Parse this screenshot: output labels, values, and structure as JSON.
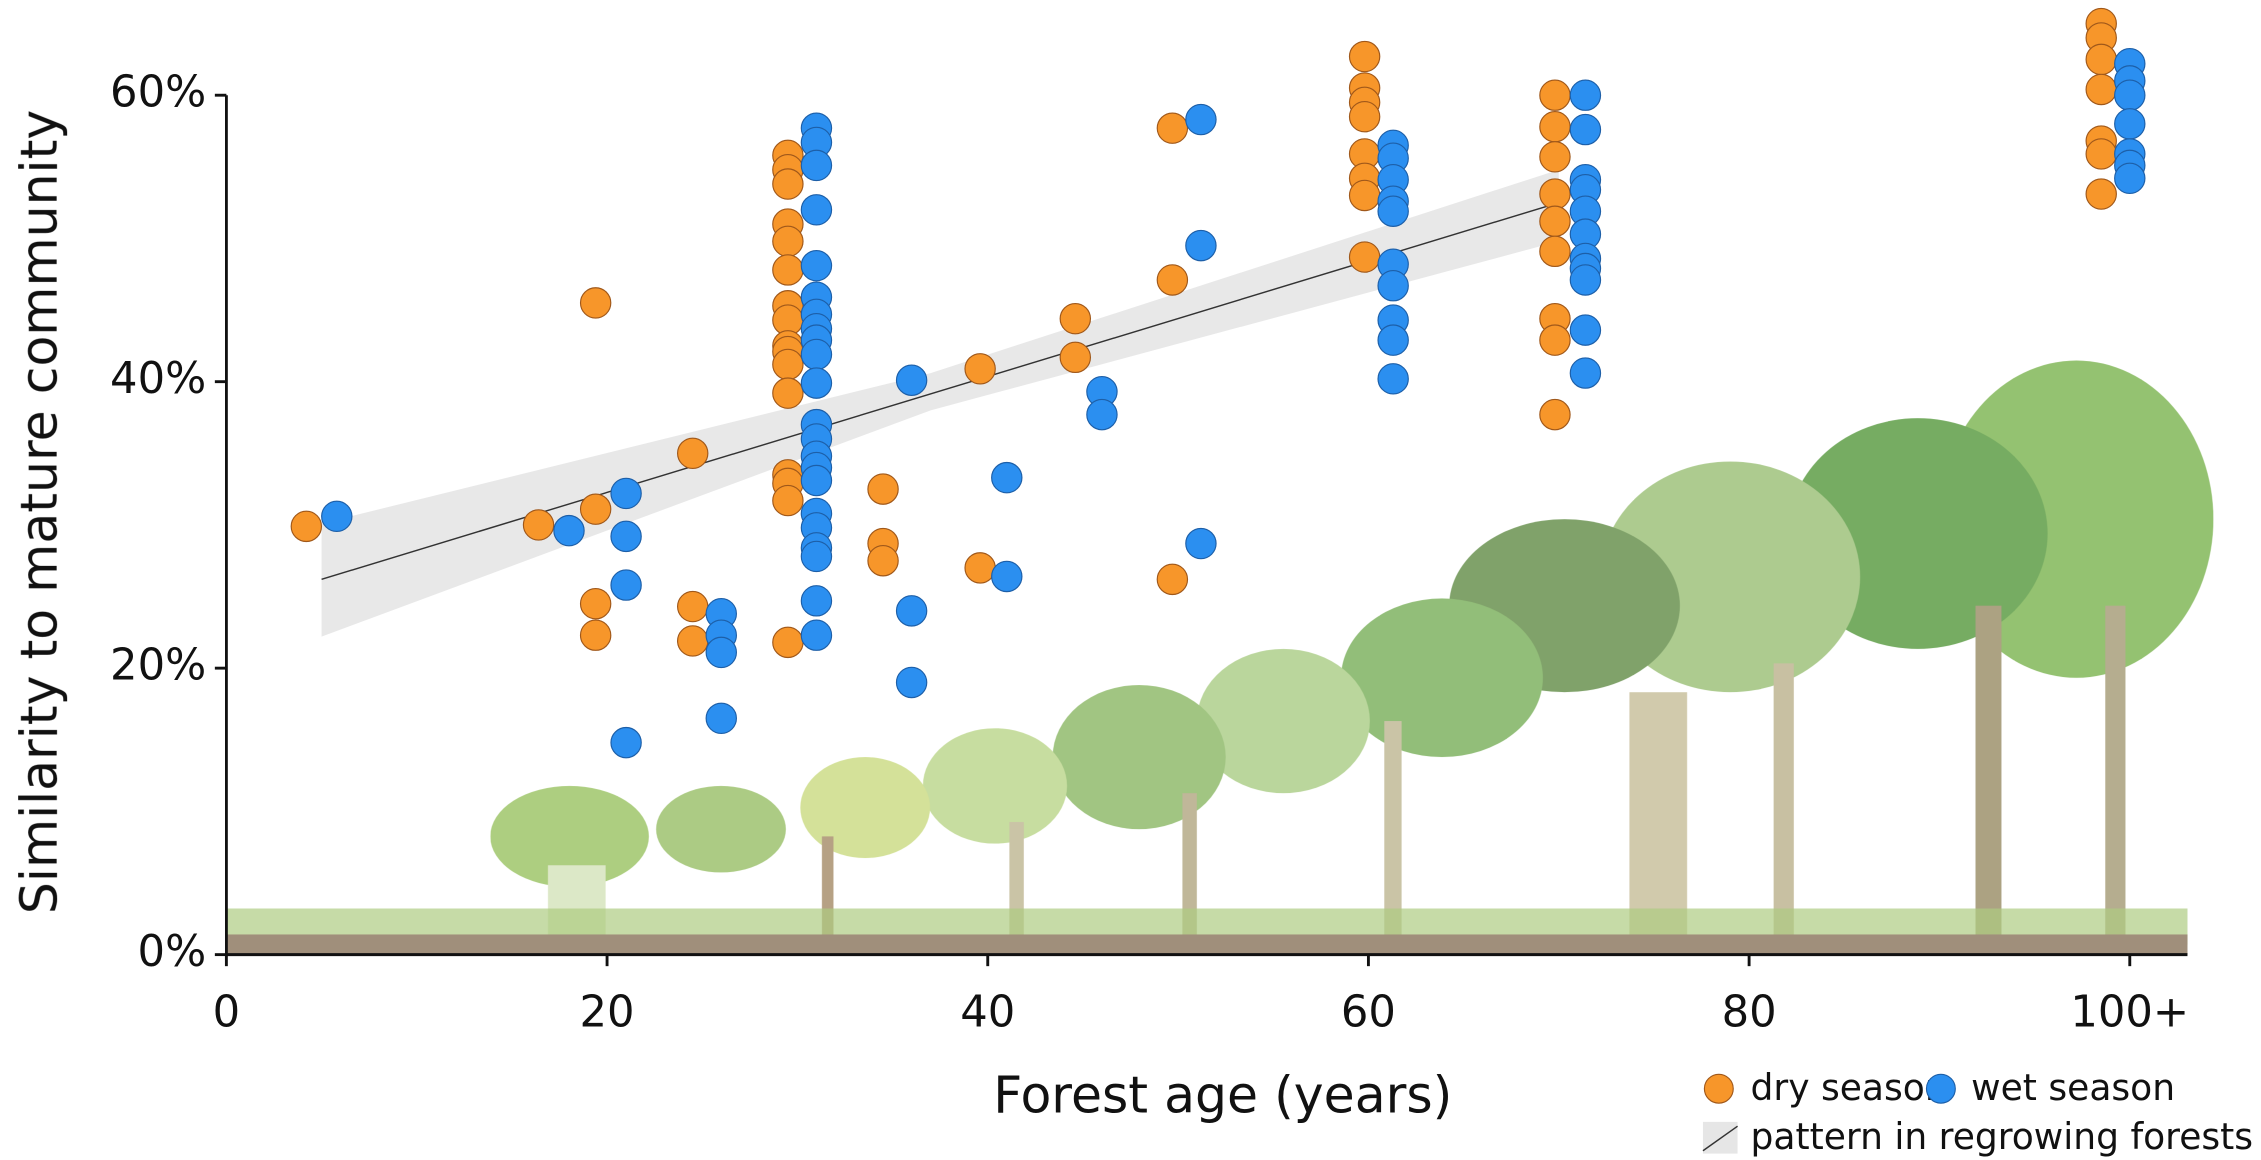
{
  "chart_data": {
    "type": "scatter",
    "x_label": "Forest age (years)",
    "y_label": "Similarity to mature community",
    "xlim": [
      0,
      103
    ],
    "ylim": [
      0,
      60
    ],
    "xticks": [
      0,
      20,
      40,
      60,
      80,
      {
        "value": 100,
        "label": "100+"
      }
    ],
    "yticks": [
      {
        "value": 0,
        "label": "0%"
      },
      {
        "value": 20,
        "label": "20%"
      },
      {
        "value": 40,
        "label": "40%"
      },
      {
        "value": 60,
        "label": "60%"
      }
    ],
    "series": [
      {
        "name": "dry season",
        "color": "#f7962a",
        "x": [
          4.2,
          16.4,
          19.4,
          19.4,
          19.4,
          19.4,
          24.5,
          24.5,
          24.5,
          29.5,
          29.5,
          29.5,
          29.5,
          29.5,
          29.5,
          29.5,
          29.5,
          29.5,
          29.5,
          29.5,
          29.5,
          29.5,
          29.5,
          29.5,
          29.5,
          34.5,
          34.5,
          34.5,
          39.6,
          39.6,
          44.6,
          44.6,
          49.7,
          49.7,
          49.7,
          59.8,
          59.8,
          59.8,
          59.8,
          59.8,
          59.8,
          59.8,
          59.8,
          69.8,
          69.8,
          69.8,
          69.8,
          69.8,
          69.8,
          69.8,
          69.8,
          69.8,
          98.5,
          98.5,
          98.5,
          98.5,
          98.5,
          98.5,
          98.5
        ],
        "values": [
          29.9,
          30,
          45.5,
          31.1,
          24.5,
          22.3,
          35,
          24.3,
          21.9,
          55.8,
          54.8,
          53.8,
          51,
          49.8,
          47.8,
          45.3,
          44.3,
          42.5,
          42.1,
          41.2,
          39.2,
          33.5,
          32.9,
          31.7,
          21.8,
          32.5,
          28.7,
          27.5,
          40.9,
          27,
          44.4,
          41.7,
          57.7,
          47.1,
          26.2,
          62.7,
          60.5,
          59.5,
          58.5,
          55.9,
          54.2,
          53,
          48.7,
          60,
          57.8,
          55.7,
          53.1,
          51.2,
          49.1,
          44.4,
          42.9,
          37.7,
          65,
          64,
          62.5,
          60.4,
          56.8,
          55.9,
          53.1
        ]
      },
      {
        "name": "wet season",
        "color": "#2b8ff0",
        "x": [
          5.8,
          18,
          21,
          21,
          21,
          21,
          26,
          26,
          26,
          26,
          31,
          31,
          31,
          31,
          31,
          31,
          31,
          31,
          31,
          31,
          31,
          31,
          31,
          31,
          31,
          31,
          31,
          31,
          31,
          31,
          31,
          31,
          36,
          36,
          36,
          41,
          41,
          46,
          46,
          51.2,
          51.2,
          51.2,
          61.3,
          61.3,
          61.3,
          61.3,
          61.3,
          61.3,
          61.3,
          61.3,
          61.3,
          61.3,
          71.4,
          71.4,
          71.4,
          71.4,
          71.4,
          71.4,
          71.4,
          71.4,
          71.4,
          71.4,
          71.4,
          100,
          100,
          100,
          100,
          100,
          100,
          100
        ],
        "values": [
          30.6,
          29.6,
          32.2,
          29.2,
          25.8,
          14.8,
          23.8,
          22.3,
          21.1,
          16.5,
          57.7,
          56.7,
          55.1,
          52,
          48.1,
          45.9,
          44.7,
          43.7,
          42.9,
          41.9,
          39.9,
          37,
          36,
          34.8,
          34,
          33.1,
          30.8,
          29.8,
          28.4,
          27.8,
          24.7,
          22.3,
          40.1,
          24,
          19,
          33.3,
          26.4,
          39.3,
          37.7,
          58.3,
          49.5,
          28.7,
          56.5,
          55.6,
          54.1,
          52.6,
          51.9,
          48.2,
          46.7,
          44.3,
          42.9,
          40.2,
          60,
          57.6,
          54.1,
          53.4,
          51.9,
          50.3,
          48.6,
          47.9,
          47.1,
          43.6,
          40.6,
          62.2,
          61,
          60,
          58,
          55.9,
          55.1,
          54.2
        ]
      }
    ],
    "fit": {
      "name": "pattern in regrowing forests",
      "color": "#333333",
      "band_color": "#e6e6e6",
      "x": [
        5,
        70
      ],
      "values": [
        26.2,
        52.5
      ],
      "band_x": [
        5,
        37,
        70
      ],
      "band_lower": [
        22.2,
        38.0,
        49.8
      ],
      "band_upper": [
        30.1,
        40.6,
        54.8
      ]
    }
  }
}
